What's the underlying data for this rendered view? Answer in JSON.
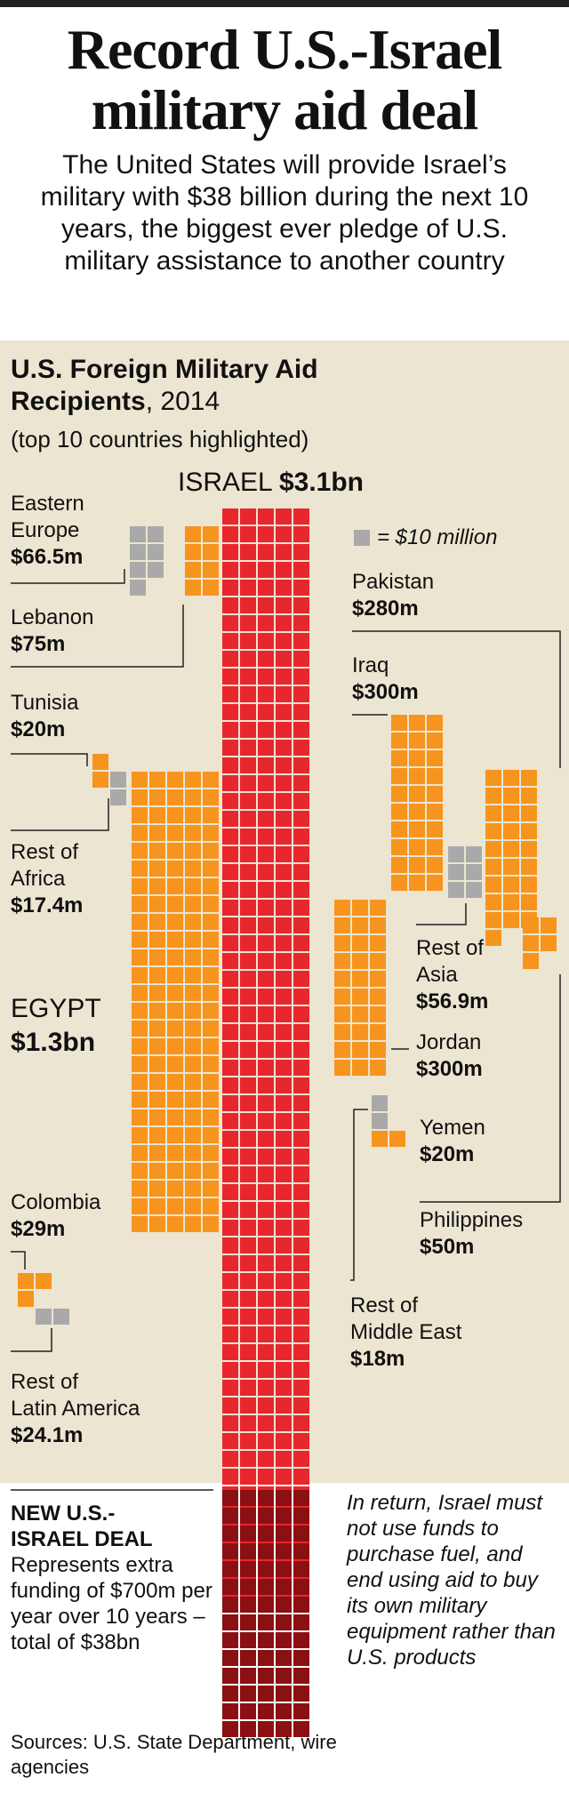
{
  "header": {
    "title_line1": "Record U.S.-Israel",
    "title_line2": "military aid deal",
    "intro": "The United States will provide Israel’s military with $38 billion during the next 10 years, the biggest ever pledge of U.S. military assistance to another country"
  },
  "section": {
    "title_line1": "U.S. Foreign Military Aid",
    "title_line2": "Recipients",
    "year": ", 2014",
    "subtitle": "(top 10 countries highlighted)"
  },
  "legend": {
    "text": "= $10 million",
    "color": "#a9a9a9"
  },
  "colors": {
    "israel": "#e8262d",
    "top10": "#f7941d",
    "other": "#a9a9a9",
    "deal": "#8b1013",
    "panel": "#ece5d1"
  },
  "labels": {
    "israel": {
      "name": "ISRAEL",
      "value": "$3.1bn"
    },
    "eastern_europe": {
      "name1": "Eastern",
      "name2": "Europe",
      "value": "$66.5m"
    },
    "lebanon": {
      "name": "Lebanon",
      "value": "$75m"
    },
    "tunisia": {
      "name": "Tunisia",
      "value": "$20m"
    },
    "rest_africa": {
      "name1": "Rest of",
      "name2": "Africa",
      "value": "$17.4m"
    },
    "egypt": {
      "name": "EGYPT",
      "value": "$1.3bn"
    },
    "colombia": {
      "name": "Colombia",
      "value": "$29m"
    },
    "rest_latam": {
      "name1": "Rest of",
      "name2": "Latin America",
      "value": "$24.1m"
    },
    "pakistan": {
      "name": "Pakistan",
      "value": "$280m"
    },
    "iraq": {
      "name": "Iraq",
      "value": "$300m"
    },
    "rest_asia": {
      "name1": "Rest of",
      "name2": "Asia",
      "value": "$56.9m"
    },
    "jordan": {
      "name": "Jordan",
      "value": "$300m"
    },
    "yemen": {
      "name": "Yemen",
      "value": "$20m"
    },
    "philippines": {
      "name": "Philippines",
      "value": "$50m"
    },
    "rest_mideast": {
      "name1": "Rest of",
      "name2": "Middle East",
      "value": "$18m"
    }
  },
  "deal": {
    "heading1": "NEW U.S.-",
    "heading2": "ISRAEL DEAL",
    "text": "Represents extra funding of $700m per year over 10 years – total of $38bn",
    "note": "In return, Israel must not use funds to purchase fuel, and end using aid to buy its own military equipment rather than U.S. products"
  },
  "sources": "Sources: U.S. State Department, wire agencies",
  "chart_data": {
    "type": "table",
    "title": "U.S. Foreign Military Aid Recipients, 2014",
    "unit": "$10 million per square",
    "series": [
      {
        "name": "ISRAEL",
        "value_millions": 3100,
        "group": "top10"
      },
      {
        "name": "EGYPT",
        "value_millions": 1300,
        "group": "top10"
      },
      {
        "name": "Iraq",
        "value_millions": 300,
        "group": "top10"
      },
      {
        "name": "Jordan",
        "value_millions": 300,
        "group": "top10"
      },
      {
        "name": "Pakistan",
        "value_millions": 280,
        "group": "top10"
      },
      {
        "name": "Lebanon",
        "value_millions": 75,
        "group": "top10"
      },
      {
        "name": "Eastern Europe",
        "value_millions": 66.5,
        "group": "other"
      },
      {
        "name": "Rest of Asia",
        "value_millions": 56.9,
        "group": "other"
      },
      {
        "name": "Philippines",
        "value_millions": 50,
        "group": "top10"
      },
      {
        "name": "Colombia",
        "value_millions": 29,
        "group": "top10"
      },
      {
        "name": "Rest of Latin America",
        "value_millions": 24.1,
        "group": "other"
      },
      {
        "name": "Tunisia",
        "value_millions": 20,
        "group": "top10"
      },
      {
        "name": "Yemen",
        "value_millions": 20,
        "group": "top10"
      },
      {
        "name": "Rest of Middle East",
        "value_millions": 18,
        "group": "other"
      },
      {
        "name": "Rest of Africa",
        "value_millions": 17.4,
        "group": "other"
      }
    ],
    "new_deal": {
      "per_year_millions": 700,
      "years": 10,
      "total": "$38bn"
    }
  }
}
